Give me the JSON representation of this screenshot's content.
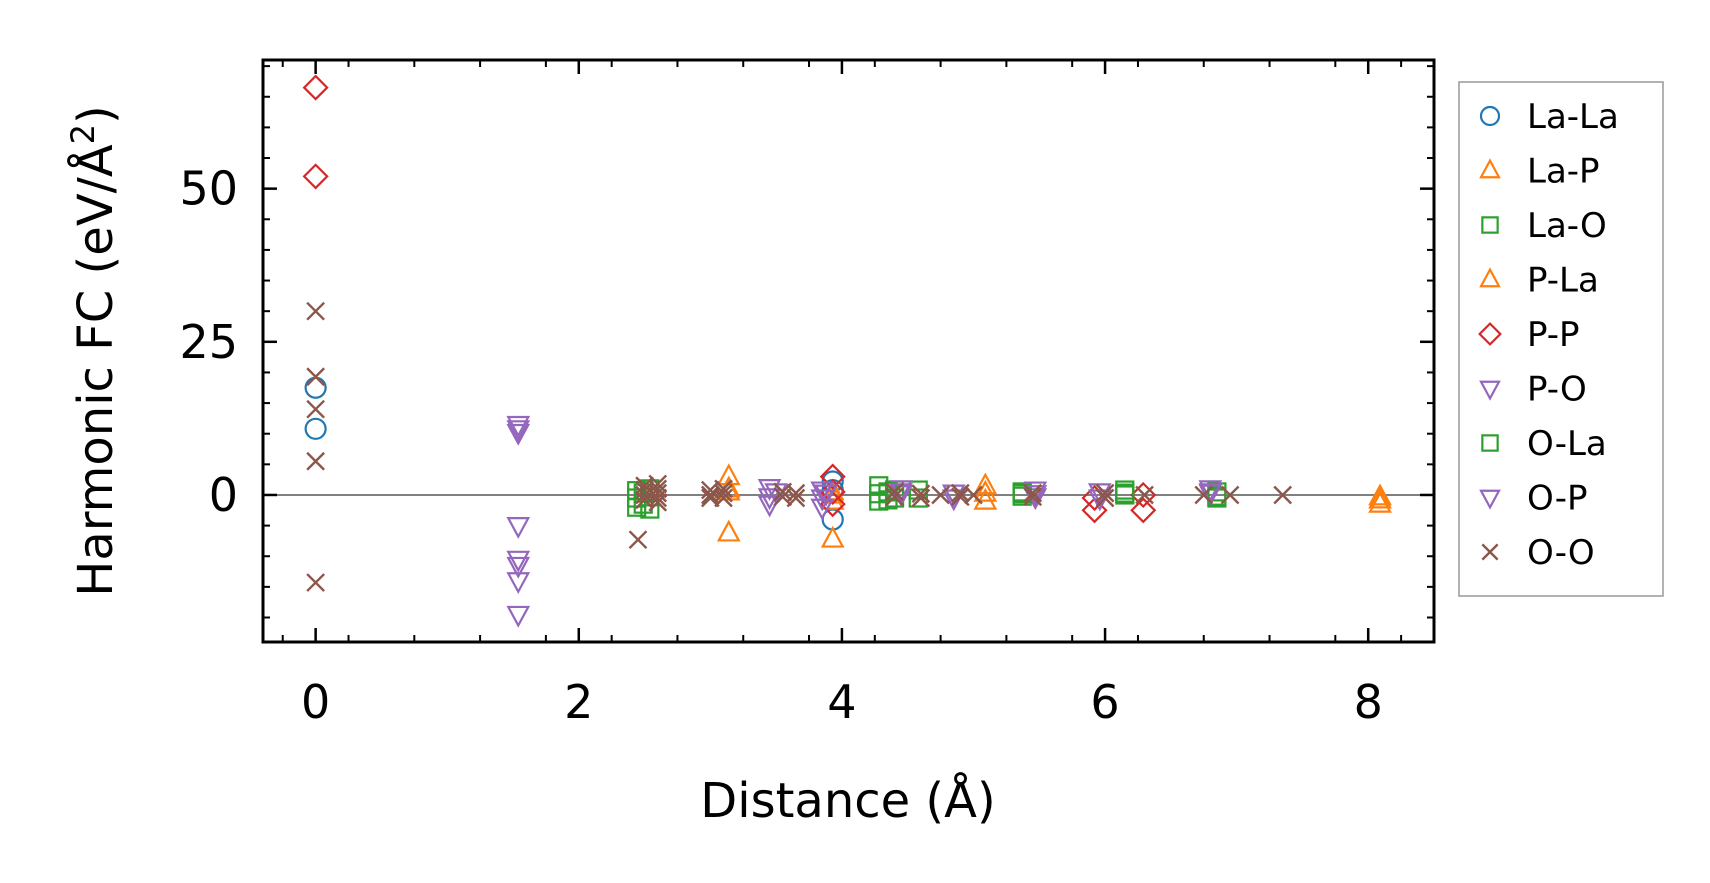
{
  "chart_data": {
    "type": "scatter",
    "title": "",
    "xlabel": "Distance (Å)",
    "ylabel_parts": [
      "Harmonic FC (eV/Å",
      "2",
      ")"
    ],
    "xlim": [
      -0.4,
      8.5
    ],
    "ylim": [
      -24,
      71
    ],
    "xticks": [
      0,
      2,
      4,
      6,
      8
    ],
    "yticks": [
      0,
      25,
      50
    ],
    "grid": false,
    "zero_line": true,
    "legend_position": "right-outside",
    "series": [
      {
        "name": "La-La",
        "marker": "circle",
        "color": "#1f77b4",
        "points": [
          [
            0,
            17.5
          ],
          [
            0,
            10.8
          ],
          [
            3.93,
            2.2
          ],
          [
            3.93,
            -4.0
          ],
          [
            3.93,
            0.8
          ]
        ]
      },
      {
        "name": "La-P",
        "marker": "triangle-up",
        "color": "#ff7f0e",
        "points": [
          [
            3.14,
            3.0
          ],
          [
            3.14,
            0.5
          ],
          [
            3.14,
            -6.2
          ],
          [
            3.93,
            0.5
          ],
          [
            3.93,
            -1.0
          ],
          [
            3.93,
            -7.2
          ],
          [
            5.09,
            1.5
          ],
          [
            5.09,
            -1.0
          ],
          [
            8.09,
            -0.3
          ],
          [
            8.09,
            -1.5
          ]
        ]
      },
      {
        "name": "La-O",
        "marker": "square",
        "color": "#2ca02c",
        "points": [
          [
            2.44,
            0.7
          ],
          [
            2.44,
            -0.5
          ],
          [
            2.44,
            -2.0
          ],
          [
            2.54,
            1.0
          ],
          [
            2.54,
            -0.3
          ],
          [
            2.54,
            -2.3
          ],
          [
            4.28,
            1.5
          ],
          [
            4.28,
            0.2
          ],
          [
            4.28,
            -1.0
          ],
          [
            4.4,
            0.8
          ],
          [
            4.4,
            -0.5
          ],
          [
            4.58,
            0.8
          ],
          [
            4.58,
            -0.5
          ],
          [
            5.37,
            0.5
          ],
          [
            5.37,
            -0.2
          ],
          [
            6.15,
            0.8
          ],
          [
            6.15,
            0.0
          ],
          [
            6.85,
            0.5
          ],
          [
            6.85,
            -0.5
          ]
        ]
      },
      {
        "name": "P-La",
        "marker": "triangle-up",
        "color": "#ff7f0e",
        "points": [
          [
            3.14,
            1.0
          ],
          [
            3.93,
            0.0
          ],
          [
            5.09,
            0.3
          ],
          [
            8.09,
            -0.8
          ]
        ]
      },
      {
        "name": "P-P",
        "marker": "diamond",
        "color": "#d62728",
        "points": [
          [
            0,
            66.5
          ],
          [
            0,
            52.0
          ],
          [
            3.93,
            3.0
          ],
          [
            3.93,
            0.5
          ],
          [
            3.93,
            -1.5
          ],
          [
            5.92,
            -0.5
          ],
          [
            5.92,
            -2.5
          ],
          [
            6.29,
            0.0
          ],
          [
            6.29,
            -2.5
          ]
        ]
      },
      {
        "name": "P-O",
        "marker": "triangle-down",
        "color": "#9467bd",
        "points": [
          [
            1.54,
            11.5
          ],
          [
            1.54,
            10.2
          ],
          [
            1.54,
            -5.0
          ],
          [
            1.54,
            -10.5
          ],
          [
            1.54,
            -11.5
          ],
          [
            1.54,
            -14.0
          ],
          [
            1.54,
            -19.5
          ],
          [
            3.45,
            1.2
          ],
          [
            3.45,
            -0.3
          ],
          [
            3.45,
            -1.5
          ],
          [
            3.85,
            0.8
          ],
          [
            3.85,
            -0.5
          ],
          [
            3.85,
            -2.0
          ],
          [
            4.45,
            1.0
          ],
          [
            4.45,
            0.2
          ],
          [
            4.85,
            0.3
          ],
          [
            4.85,
            -0.5
          ],
          [
            5.47,
            0.8
          ],
          [
            5.47,
            -0.3
          ],
          [
            5.96,
            0.5
          ],
          [
            5.96,
            -0.5
          ],
          [
            6.8,
            1.0
          ],
          [
            6.8,
            0.3
          ]
        ]
      },
      {
        "name": "O-La",
        "marker": "square",
        "color": "#2ca02c",
        "points": [
          [
            2.49,
            0.3
          ],
          [
            2.49,
            -1.5
          ],
          [
            4.35,
            0.5
          ],
          [
            4.35,
            -0.8
          ],
          [
            5.37,
            0.2
          ],
          [
            6.15,
            0.3
          ],
          [
            6.85,
            -0.2
          ]
        ]
      },
      {
        "name": "O-P",
        "marker": "triangle-down",
        "color": "#9467bd",
        "points": [
          [
            1.54,
            10.8
          ],
          [
            3.5,
            0.5
          ],
          [
            3.88,
            0.3
          ],
          [
            4.45,
            0.5
          ],
          [
            5.47,
            0.2
          ],
          [
            6.8,
            0.5
          ]
        ]
      },
      {
        "name": "O-O",
        "marker": "x",
        "color": "#8c564b",
        "points": [
          [
            0,
            30.0
          ],
          [
            0,
            19.3
          ],
          [
            0,
            14.0
          ],
          [
            0,
            5.5
          ],
          [
            0,
            -14.3
          ],
          [
            2.45,
            -7.3
          ],
          [
            2.5,
            1.5
          ],
          [
            2.5,
            0.8
          ],
          [
            2.5,
            0.0
          ],
          [
            2.5,
            -0.8
          ],
          [
            2.6,
            1.8
          ],
          [
            2.6,
            1.0
          ],
          [
            2.6,
            0.3
          ],
          [
            2.6,
            -0.5
          ],
          [
            2.6,
            -1.2
          ],
          [
            3.0,
            0.8
          ],
          [
            3.0,
            0.0
          ],
          [
            3.0,
            -0.5
          ],
          [
            3.1,
            1.0
          ],
          [
            3.1,
            0.3
          ],
          [
            3.1,
            -0.5
          ],
          [
            3.55,
            0.5
          ],
          [
            3.55,
            -0.3
          ],
          [
            3.65,
            0.3
          ],
          [
            3.65,
            -0.5
          ],
          [
            4.4,
            0.5
          ],
          [
            4.4,
            -0.3
          ],
          [
            4.6,
            0.2
          ],
          [
            4.6,
            -0.5
          ],
          [
            4.75,
            0.0
          ],
          [
            4.9,
            0.3
          ],
          [
            4.9,
            -0.3
          ],
          [
            5.0,
            0.0
          ],
          [
            5.45,
            0.3
          ],
          [
            5.45,
            -0.3
          ],
          [
            6.0,
            0.3
          ],
          [
            6.0,
            -0.5
          ],
          [
            6.3,
            0.0
          ],
          [
            6.75,
            0.0
          ],
          [
            6.95,
            0.0
          ],
          [
            7.35,
            0.0
          ]
        ]
      }
    ]
  }
}
